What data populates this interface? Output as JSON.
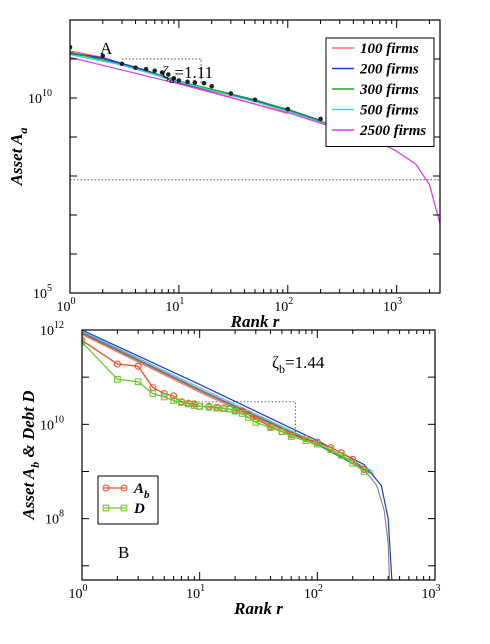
{
  "chart_data": [
    {
      "type": "line",
      "panel_label": "A",
      "xlabel": "Rank r",
      "ylabel": "Asset A",
      "ylabel_sub": "a",
      "x_scale": "log",
      "y_scale": "log",
      "xlim": [
        1,
        2500
      ],
      "ylim": [
        100000,
        1000000000000
      ],
      "x_ticks": [
        {
          "value": 1,
          "base": "10",
          "exp": "0"
        },
        {
          "value": 10,
          "base": "10",
          "exp": "1"
        },
        {
          "value": 100,
          "base": "10",
          "exp": "2"
        },
        {
          "value": 1000,
          "base": "10",
          "exp": "3"
        }
      ],
      "y_ticks": [
        {
          "value": 100000,
          "base": "10",
          "exp": "5"
        },
        {
          "value": 10000000000,
          "base": "10",
          "exp": "10"
        }
      ],
      "annotation": {
        "symbol": "ζ",
        "sub": "a",
        "text": "=1.11"
      },
      "legend_position": "top-right",
      "series": [
        {
          "name": "100 firms",
          "color": "#ff6b6b",
          "points": [
            [
              1,
              160000000000
            ],
            [
              2,
              110000000000
            ],
            [
              10,
              25000000000
            ],
            [
              100,
              4000000000
            ]
          ]
        },
        {
          "name": "200 firms",
          "color": "#1f3fbf",
          "points": [
            [
              1,
              140000000000
            ],
            [
              2,
              105000000000
            ],
            [
              5,
              50000000000
            ],
            [
              10,
              25000000000
            ],
            [
              30,
              12000000000
            ],
            [
              100,
              5000000000
            ],
            [
              200,
              2600000000
            ]
          ]
        },
        {
          "name": "300 firms",
          "color": "#2ca02c",
          "points": [
            [
              1,
              150000000000
            ],
            [
              3,
              70000000000
            ],
            [
              10,
              27000000000
            ],
            [
              50,
              9000000000
            ],
            [
              100,
              5000000000
            ],
            [
              300,
              1700000000
            ]
          ]
        },
        {
          "name": "500 firms",
          "color": "#3fd4d4",
          "points": [
            [
              1,
              130000000000
            ],
            [
              3,
              70000000000
            ],
            [
              10,
              26000000000
            ],
            [
              50,
              8000000000
            ],
            [
              100,
              4500000000
            ],
            [
              500,
              1000000000
            ]
          ]
        },
        {
          "name": "2500 firms",
          "color": "#e040e0",
          "points": [
            [
              1,
              110000000000
            ],
            [
              10,
              23000000000
            ],
            [
              100,
              4200000000
            ],
            [
              500,
              1000000000
            ],
            [
              800,
              600000000
            ],
            [
              1000,
              430000000
            ],
            [
              1500,
              200000000
            ],
            [
              2000,
              60000000
            ],
            [
              2500,
              6000000
            ]
          ]
        }
      ],
      "markers": [
        [
          1,
          200000000000
        ],
        [
          2,
          120000000000
        ],
        [
          3,
          75000000000
        ],
        [
          4,
          60000000000
        ],
        [
          5,
          55000000000
        ],
        [
          6,
          50000000000
        ],
        [
          7,
          45000000000
        ],
        [
          8,
          40000000000
        ],
        [
          9,
          32000000000
        ],
        [
          10,
          28000000000
        ],
        [
          12,
          26000000000
        ],
        [
          14,
          25000000000
        ],
        [
          17,
          24000000000
        ],
        [
          20,
          20000000000
        ],
        [
          30,
          13000000000
        ],
        [
          50,
          9000000000
        ],
        [
          100,
          5200000000
        ],
        [
          200,
          2900000000
        ],
        [
          300,
          1800000000
        ],
        [
          500,
          1000000000
        ]
      ],
      "reference_lines": [
        {
          "points": [
            [
              3,
              100000000000
            ],
            [
              16,
              100000000000
            ],
            [
              16,
              24000000000
            ]
          ]
        },
        {
          "points": [
            [
              1,
              80000000
            ],
            [
              2500,
              80000000
            ]
          ]
        }
      ]
    },
    {
      "type": "line",
      "panel_label": "B",
      "xlabel": "Rank r",
      "ylabel": "Asset A",
      "ylabel_sub": "b",
      "ylabel_tail": " & Debt D",
      "x_scale": "log",
      "y_scale": "log",
      "xlim": [
        1,
        1000
      ],
      "ylim": [
        5000000,
        1000000000000
      ],
      "x_ticks": [
        {
          "value": 1,
          "base": "10",
          "exp": "0"
        },
        {
          "value": 10,
          "base": "10",
          "exp": "1"
        },
        {
          "value": 100,
          "base": "10",
          "exp": "2"
        },
        {
          "value": 1000,
          "base": "10",
          "exp": "3"
        }
      ],
      "y_ticks": [
        {
          "value": 100000000,
          "base": "10",
          "exp": "8"
        },
        {
          "value": 10000000000,
          "base": "10",
          "exp": "10"
        },
        {
          "value": 1000000000000,
          "base": "10",
          "exp": "12"
        }
      ],
      "annotation": {
        "symbol": "ζ",
        "sub": "b",
        "text": "=1.44"
      },
      "legend_position": "bottom-left",
      "legend": [
        {
          "name": "A",
          "sub": "b",
          "color": "#e8502a",
          "marker": "circle"
        },
        {
          "name": "D",
          "sub": "",
          "color": "#6cc82e",
          "marker": "square"
        }
      ],
      "fit_lines": [
        {
          "color": "#1f3fbf",
          "points": [
            [
              1,
              1000000000000
            ],
            [
              10,
              70000000000
            ],
            [
              100,
              4500000000
            ],
            [
              250,
              1400000000
            ],
            [
              350,
              500000000
            ],
            [
              400,
              100000000
            ],
            [
              430,
              5000000
            ]
          ]
        },
        {
          "color": "#3fd4d4",
          "points": [
            [
              1,
              950000000000
            ],
            [
              10,
              60000000000
            ],
            [
              100,
              4000000000
            ],
            [
              300,
              1000000000
            ]
          ]
        },
        {
          "color": "#e040e0",
          "points": [
            [
              1,
              900000000000
            ],
            [
              10,
              55000000000
            ],
            [
              100,
              3800000000
            ],
            [
              300,
              900000000
            ]
          ]
        },
        {
          "color": "#2ca02c",
          "points": [
            [
              1,
              850000000000
            ],
            [
              10,
              52000000000
            ],
            [
              100,
              3700000000
            ],
            [
              300,
              850000000
            ]
          ]
        },
        {
          "color": "#ff6b6b",
          "points": [
            [
              1,
              800000000000
            ],
            [
              10,
              48000000000
            ],
            [
              100,
              3500000000
            ]
          ]
        },
        {
          "color": "#888888",
          "points": [
            [
              250,
              1100000000
            ],
            [
              320,
              500000000
            ],
            [
              370,
              150000000
            ],
            [
              400,
              30000000
            ],
            [
              410,
              5000000
            ]
          ]
        }
      ],
      "series": [
        {
          "name": "A",
          "color": "#e8502a",
          "marker": "circle",
          "points": [
            [
              1,
              600000000000
            ],
            [
              2,
              190000000000
            ],
            [
              3,
              170000000000
            ],
            [
              4,
              60000000000
            ],
            [
              5,
              45000000000
            ],
            [
              6,
              40000000000
            ],
            [
              7,
              30000000000
            ],
            [
              8,
              28000000000
            ],
            [
              9,
              27000000000
            ],
            [
              10,
              24000000000
            ],
            [
              12,
              24000000000
            ],
            [
              14,
              23000000000
            ],
            [
              16,
              22000000000
            ],
            [
              18,
              21000000000
            ],
            [
              20,
              20000000000
            ],
            [
              23,
              19000000000
            ],
            [
              26,
              16000000000
            ],
            [
              30,
              13000000000
            ],
            [
              40,
              9000000000
            ],
            [
              50,
              7000000000
            ],
            [
              60,
              6000000000
            ],
            [
              80,
              5000000000
            ],
            [
              100,
              4200000000
            ],
            [
              130,
              3200000000
            ],
            [
              160,
              2500000000
            ],
            [
              200,
              1800000000
            ],
            [
              250,
              1100000000
            ]
          ]
        },
        {
          "name": "D",
          "color": "#6cc82e",
          "marker": "square",
          "points": [
            [
              1,
              550000000000
            ],
            [
              2,
              90000000000
            ],
            [
              3,
              80000000000
            ],
            [
              4,
              45000000000
            ],
            [
              5,
              38000000000
            ],
            [
              6,
              32000000000
            ],
            [
              7,
              29000000000
            ],
            [
              8,
              27000000000
            ],
            [
              9,
              25000000000
            ],
            [
              10,
              24000000000
            ],
            [
              12,
              23000000000
            ],
            [
              14,
              22000000000
            ],
            [
              16,
              21500000000
            ],
            [
              18,
              21000000000
            ],
            [
              20,
              19000000000
            ],
            [
              23,
              17000000000
            ],
            [
              26,
              14000000000
            ],
            [
              30,
              11000000000
            ],
            [
              40,
              8500000000
            ],
            [
              50,
              7000000000
            ],
            [
              60,
              5500000000
            ],
            [
              80,
              4500000000
            ],
            [
              100,
              3800000000
            ],
            [
              130,
              2900000000
            ],
            [
              160,
              2200000000
            ],
            [
              200,
              1500000000
            ],
            [
              250,
              1000000000
            ]
          ]
        }
      ],
      "reference_lines": [
        {
          "points": [
            [
              6,
              30000000000
            ],
            [
              65,
              30000000000
            ],
            [
              65,
              6000000000
            ]
          ]
        }
      ]
    }
  ]
}
